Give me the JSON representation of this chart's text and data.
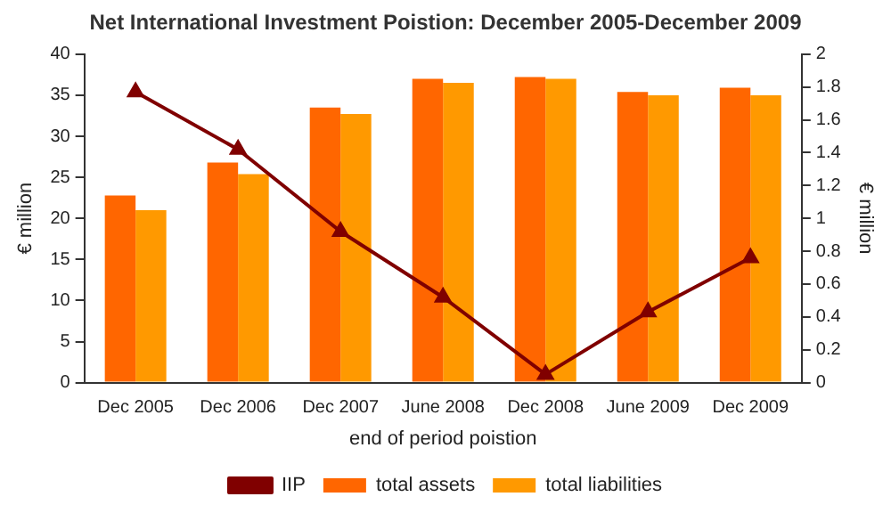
{
  "chart_data": {
    "type": "bar",
    "title": "Net International Investment Poistion: December 2005-December 2009",
    "xlabel": "end of period poistion",
    "ylabel": "€ million",
    "y2label": "€ million",
    "categories": [
      "Dec 2005",
      "Dec 2006",
      "Dec 2007",
      "June 2008",
      "Dec 2008",
      "June 2009",
      "Dec 2009"
    ],
    "series": [
      {
        "name": "total assets",
        "color": "#ff6600",
        "values": [
          22.8,
          26.8,
          33.5,
          37,
          37.2,
          35.4,
          35.9
        ]
      },
      {
        "name": "total liabilities",
        "color": "#ff9900",
        "values": [
          21,
          25.4,
          32.7,
          36.5,
          37,
          35,
          35
        ]
      },
      {
        "name": "IIP",
        "type": "line",
        "axis": "y2",
        "color": "#800000",
        "marker": "triangle",
        "values": [
          1.77,
          1.42,
          0.92,
          0.52,
          0.05,
          0.43,
          0.76
        ]
      }
    ],
    "ylim": [
      0,
      40
    ],
    "yticks": [
      0,
      5,
      10,
      15,
      20,
      25,
      30,
      35,
      40
    ],
    "y2lim": [
      0,
      2
    ],
    "y2ticks": [
      0,
      0.2,
      0.4,
      0.6,
      0.8,
      1,
      1.2,
      1.4,
      1.6,
      1.8,
      2
    ],
    "grid": false,
    "legend": "bottom"
  }
}
